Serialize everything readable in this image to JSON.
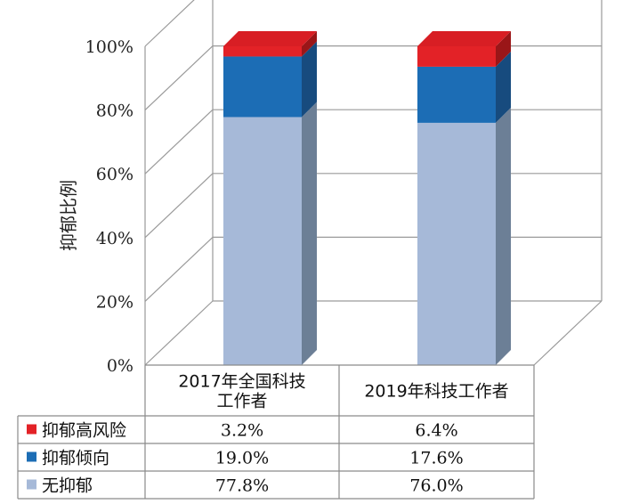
{
  "chart_data": {
    "type": "bar",
    "stacked": true,
    "style": "3d",
    "ylabel": "抑郁比例",
    "ylim": [
      0,
      100
    ],
    "yticks": [
      "0%",
      "20%",
      "40%",
      "60%",
      "80%",
      "100%"
    ],
    "categories": [
      "2017年全国科技工作者",
      "2019年科技工作者"
    ],
    "category_lines": [
      [
        "2017年全国科技",
        "工作者"
      ],
      [
        "2019年科技工作者"
      ]
    ],
    "series": [
      {
        "name": "无抑郁",
        "values": [
          77.8,
          76.0
        ],
        "labels": [
          "77.8%",
          "76.0%"
        ],
        "color": "#a6b9d8",
        "side": "#6c7f96",
        "top": "#c2cfe4"
      },
      {
        "name": "抑郁倾向",
        "values": [
          19.0,
          17.6
        ],
        "labels": [
          "19.0%",
          "17.6%"
        ],
        "color": "#1c6db5",
        "side": "#174b7e",
        "top": "#2d7ec4"
      },
      {
        "name": "抑郁高风险",
        "values": [
          3.2,
          6.4
        ],
        "labels": [
          "3.2%",
          "6.4%"
        ],
        "color": "#e32227",
        "side": "#9a1618",
        "top": "#d81e24"
      }
    ],
    "table_rows_order": [
      "抑郁高风险",
      "抑郁倾向",
      "无抑郁"
    ],
    "grid": true
  }
}
